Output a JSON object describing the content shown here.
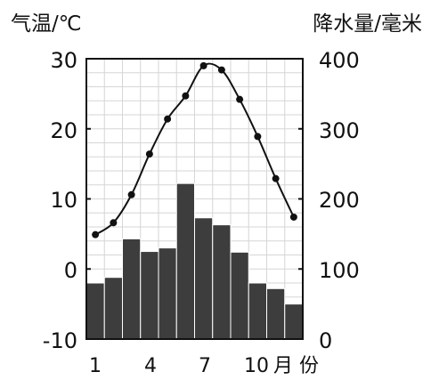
{
  "chart_data": {
    "type": "bar+line",
    "x_months": [
      1,
      2,
      3,
      4,
      5,
      6,
      7,
      8,
      9,
      10,
      11,
      12
    ],
    "x_tick_labels": [
      "1",
      "4",
      "7",
      "10"
    ],
    "x_unit_label": "月 份",
    "left_axis": {
      "label": "气温/℃",
      "ticks": [
        "30",
        "20",
        "10",
        "0",
        "-10"
      ],
      "range": [
        -10,
        30
      ]
    },
    "right_axis": {
      "label": "降水量/毫米",
      "ticks": [
        "400",
        "300",
        "200",
        "100",
        "0"
      ],
      "range": [
        0,
        400
      ]
    },
    "series": [
      {
        "kind": "bar",
        "axis": "right",
        "values": [
          80,
          88,
          143,
          125,
          130,
          222,
          173,
          163,
          124,
          80,
          72,
          50
        ]
      },
      {
        "kind": "line",
        "axis": "left",
        "values": [
          4.9,
          6.6,
          10.6,
          16.4,
          21.4,
          24.7,
          29.0,
          28.4,
          24.2,
          18.9,
          12.9,
          7.4
        ]
      }
    ],
    "grid": true
  }
}
